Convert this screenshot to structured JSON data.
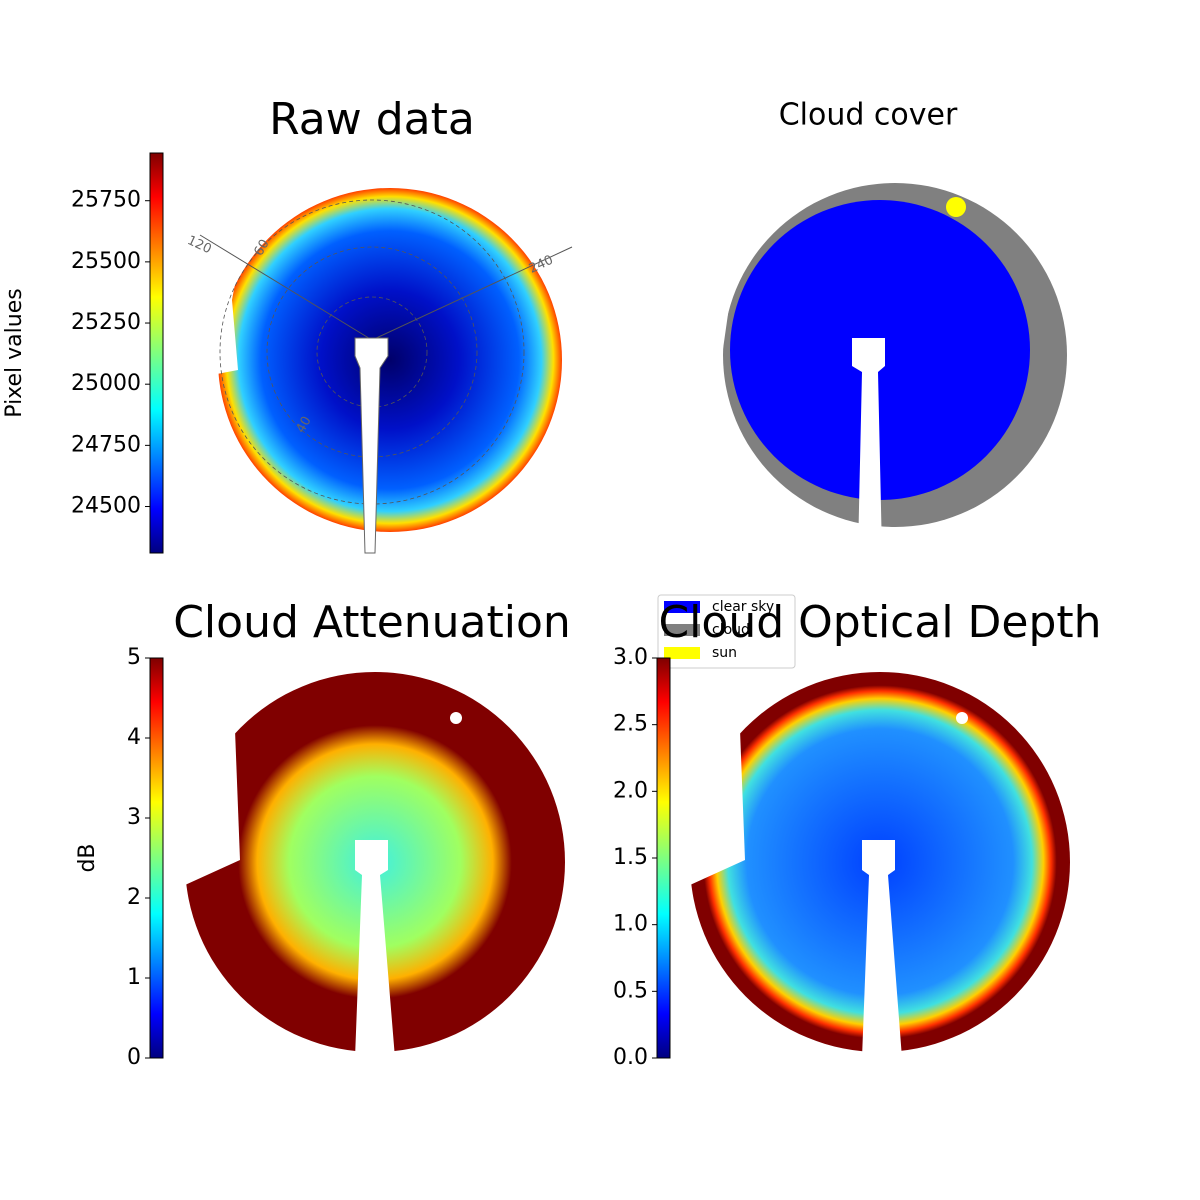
{
  "chart_data": [
    {
      "type": "image",
      "title": "Raw data",
      "colorbar_label": "Pixel values",
      "colormap": "jet",
      "clim": [
        24310,
        25945
      ],
      "cticks": [
        24500,
        24750,
        25000,
        25250,
        25500,
        25750
      ],
      "annotations": [
        "120",
        "60",
        "240",
        "40"
      ]
    },
    {
      "type": "classification",
      "title": "Cloud cover",
      "legend": [
        {
          "name": "clear sky",
          "color": "#0000ff"
        },
        {
          "name": "cloud",
          "color": "#808080"
        },
        {
          "name": "sun",
          "color": "#ffff00"
        }
      ]
    },
    {
      "type": "image",
      "title": "Cloud Attenuation",
      "colorbar_label": "dB",
      "colormap": "jet",
      "clim": [
        0,
        5
      ],
      "cticks": [
        0,
        1,
        2,
        3,
        4,
        5
      ]
    },
    {
      "type": "image",
      "title": "Cloud Optical Depth",
      "colormap": "jet",
      "clim": [
        0,
        3
      ],
      "cticks": [
        {
          "value": 0,
          "label": "0.0"
        },
        0.5,
        {
          "value": 1,
          "label": "1.0"
        },
        1.5,
        {
          "value": 2,
          "label": "2.0"
        },
        2.5,
        {
          "value": 3,
          "label": "3.0"
        }
      ]
    }
  ]
}
